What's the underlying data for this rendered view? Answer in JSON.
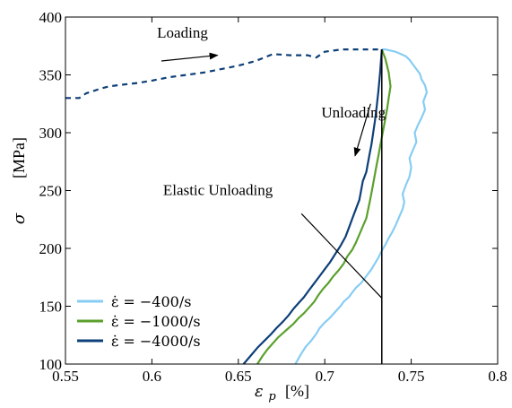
{
  "chart_data": {
    "type": "line",
    "title": "",
    "xlabel": {
      "symbol": "ε",
      "subscript": "p",
      "unit": "[%]"
    },
    "ylabel": {
      "symbol": "σ",
      "unit": "[MPa]"
    },
    "xlim": [
      0.55,
      0.8
    ],
    "ylim": [
      100,
      400
    ],
    "xticks": [
      0.55,
      0.6,
      0.65,
      0.7,
      0.75,
      0.8
    ],
    "xtick_labels": [
      "0.55",
      "0.6",
      "0.65",
      "0.7",
      "0.75",
      "0.8"
    ],
    "yticks": [
      100,
      150,
      200,
      250,
      300,
      350,
      400
    ],
    "ytick_labels": [
      "100",
      "150",
      "200",
      "250",
      "300",
      "350",
      "400"
    ],
    "grid": false,
    "legend_position": "bottom-left",
    "colors": {
      "light": "#87cdf3",
      "green": "#5aa02c",
      "navy": "#0d3f78",
      "black": "#000000"
    },
    "annotations": [
      {
        "text": "Loading",
        "x": 0.603,
        "y": 382,
        "arrow_from": [
          0.6055,
          362
        ],
        "arrow_to": [
          0.638,
          367
        ]
      },
      {
        "text": "Unloading",
        "x": 0.698,
        "y": 313,
        "arrow_from": [
          0.7265,
          325
        ],
        "arrow_to": [
          0.7175,
          280
        ]
      },
      {
        "text": "Elastic Unloading",
        "x": 0.6065,
        "y": 246,
        "arrow_from": [
          0.6865,
          230
        ],
        "arrow_to": [
          0.733,
          157
        ]
      }
    ],
    "series": [
      {
        "name": "ε̇ = −400/s",
        "color": "#87cdf3",
        "style": "solid",
        "x": [
          0.683,
          0.686,
          0.689,
          0.692,
          0.695,
          0.697,
          0.7,
          0.703,
          0.706,
          0.709,
          0.711,
          0.714,
          0.716,
          0.718,
          0.721,
          0.724,
          0.727,
          0.729,
          0.731,
          0.733,
          0.735,
          0.737,
          0.739,
          0.741,
          0.743,
          0.745,
          0.746,
          0.745,
          0.747,
          0.749,
          0.75,
          0.749,
          0.751,
          0.753,
          0.752,
          0.754,
          0.756,
          0.758,
          0.757,
          0.759,
          0.758,
          0.756,
          0.755,
          0.753,
          0.751,
          0.749,
          0.747,
          0.744,
          0.741,
          0.738,
          0.735,
          0.733
        ],
        "y": [
          100,
          108,
          115,
          120,
          126,
          131,
          136,
          140,
          145,
          150,
          154,
          158,
          162,
          166,
          170,
          176,
          182,
          187,
          192,
          198,
          203,
          209,
          214,
          220,
          227,
          234,
          240,
          247,
          255,
          262,
          270,
          278,
          285,
          292,
          300,
          307,
          313,
          320,
          327,
          335,
          341,
          346,
          351,
          355,
          359,
          363,
          366,
          368,
          370,
          371,
          372,
          372
        ]
      },
      {
        "name": "ε̇ = −1000/s",
        "color": "#5aa02c",
        "style": "solid",
        "x": [
          0.661,
          0.664,
          0.667,
          0.67,
          0.673,
          0.676,
          0.679,
          0.682,
          0.685,
          0.688,
          0.691,
          0.694,
          0.696,
          0.699,
          0.702,
          0.705,
          0.708,
          0.711,
          0.713,
          0.716,
          0.718,
          0.72,
          0.722,
          0.724,
          0.725,
          0.726,
          0.727,
          0.728,
          0.729,
          0.73,
          0.731,
          0.732,
          0.733,
          0.734,
          0.735,
          0.736,
          0.737,
          0.738,
          0.737,
          0.735,
          0.733
        ],
        "y": [
          100,
          107,
          113,
          118,
          123,
          127,
          131,
          135,
          140,
          144,
          149,
          154,
          159,
          165,
          170,
          176,
          181,
          187,
          193,
          199,
          205,
          212,
          219,
          226,
          233,
          240,
          248,
          256,
          264,
          272,
          280,
          288,
          296,
          304,
          312,
          320,
          330,
          340,
          352,
          364,
          372
        ]
      },
      {
        "name": "ε̇ = −4000/s",
        "color": "#0d3f78",
        "style": "solid",
        "x": [
          0.653,
          0.657,
          0.661,
          0.665,
          0.669,
          0.672,
          0.676,
          0.679,
          0.682,
          0.685,
          0.688,
          0.691,
          0.694,
          0.697,
          0.7,
          0.703,
          0.706,
          0.709,
          0.712,
          0.714,
          0.716,
          0.718,
          0.72,
          0.721,
          0.722,
          0.724,
          0.725,
          0.726,
          0.727,
          0.728,
          0.729,
          0.73,
          0.731,
          0.732,
          0.733
        ],
        "y": [
          100,
          107,
          114,
          120,
          126,
          131,
          137,
          142,
          148,
          153,
          158,
          164,
          170,
          176,
          182,
          188,
          195,
          202,
          210,
          218,
          226,
          234,
          242,
          250,
          258,
          266,
          274,
          282,
          290,
          300,
          310,
          322,
          336,
          352,
          372
        ]
      },
      {
        "name": "Loading",
        "color": "#0d3f78",
        "style": "dashed",
        "x": [
          0.55,
          0.558,
          0.562,
          0.566,
          0.57,
          0.575,
          0.58,
          0.586,
          0.592,
          0.6,
          0.61,
          0.62,
          0.63,
          0.64,
          0.65,
          0.66,
          0.67,
          0.68,
          0.69,
          0.695,
          0.7,
          0.705,
          0.71,
          0.72,
          0.73,
          0.733
        ],
        "y": [
          330,
          330,
          334,
          336,
          338,
          340,
          341,
          342,
          343,
          345,
          348,
          350,
          352,
          355,
          358,
          362,
          368,
          367,
          367,
          365,
          370,
          371,
          372,
          372,
          372,
          372
        ]
      },
      {
        "name": "Elastic Unloading",
        "color": "#000000",
        "style": "solid",
        "x": [
          0.733,
          0.733
        ],
        "y": [
          372,
          100
        ]
      }
    ]
  }
}
